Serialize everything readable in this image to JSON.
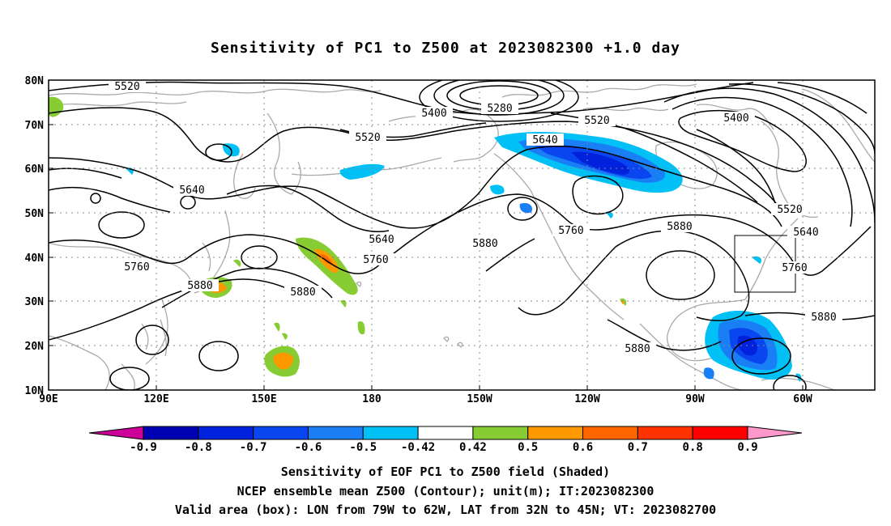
{
  "title": "Sensitivity of PC1 to Z500 at 2023082300 +1.0 day",
  "lat_labels": [
    "80N",
    "70N",
    "60N",
    "50N",
    "40N",
    "30N",
    "20N",
    "10N"
  ],
  "lon_labels": [
    "90E",
    "120E",
    "150E",
    "180",
    "150W",
    "120W",
    "90W",
    "60W"
  ],
  "contour_labels": [
    "5520",
    "5280",
    "5400",
    "5400",
    "5520",
    "5520",
    "5640",
    "5640",
    "5640",
    "5520",
    "5640",
    "5760",
    "5760",
    "5880",
    "5760",
    "5880",
    "5880",
    "5760",
    "5880",
    "5880",
    "5880"
  ],
  "colorbar": {
    "tick_labels": [
      "-0.9",
      "-0.8",
      "-0.7",
      "-0.6",
      "-0.5",
      "-0.42",
      "0.42",
      "0.5",
      "0.6",
      "0.7",
      "0.8",
      "0.9"
    ],
    "colors": [
      "#cc0099",
      "#0000b3",
      "#0022dd",
      "#0a46f0",
      "#1a7ef5",
      "#00c0f5",
      "#ffffff",
      "#88cc33",
      "#ff9900",
      "#ff6600",
      "#ff3300",
      "#ff0000",
      "#ff99cc"
    ]
  },
  "valid_box": {
    "lon_min": "79W",
    "lon_max": "62W",
    "lat_min": "32N",
    "lat_max": "45N"
  },
  "caption_lines": [
    "Sensitivity of EOF PC1 to Z500 field (Shaded)",
    "NCEP ensemble mean Z500 (Contour); unit(m); IT:2023082300",
    "Valid area (box): LON from 79W to 62W, LAT from 32N to 45N; VT: 2023082700"
  ],
  "colors": {
    "coast": "#aaaaaa",
    "contour": "#000000",
    "frame": "#000000"
  }
}
